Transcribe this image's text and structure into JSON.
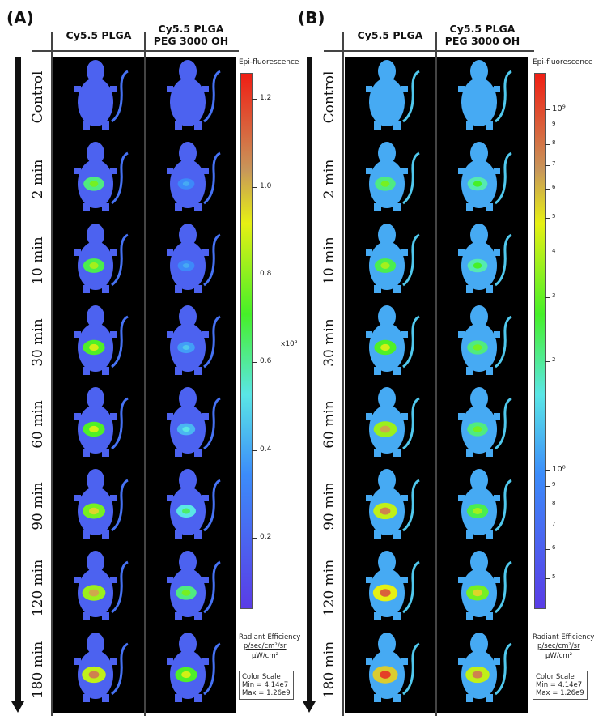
{
  "panels": [
    {
      "label": "(A)",
      "columns": [
        "Cy5.5 PLGA",
        "Cy5.5 PLGA\nPEG 3000 OH"
      ],
      "colorbar": {
        "title": "Epi-fluorescence",
        "scale": "linear",
        "multiplier": "x10⁹",
        "ticks": [
          "1.2",
          "1.0",
          "0.8",
          "0.6",
          "0.4",
          "0.2"
        ],
        "unit_title": "Radiant Efficiency",
        "unit_num": "p/sec/cm²/sr",
        "unit_den": "µW/cm²",
        "scale_box": [
          "Color Scale",
          "Min = 4.14e7",
          "Max = 1.26e9"
        ]
      },
      "signal_levels": [
        [
          0.05,
          0.05
        ],
        [
          0.6,
          0.3
        ],
        [
          0.65,
          0.3
        ],
        [
          0.7,
          0.35
        ],
        [
          0.7,
          0.4
        ],
        [
          0.75,
          0.5
        ],
        [
          0.8,
          0.6
        ],
        [
          0.85,
          0.7
        ]
      ]
    },
    {
      "label": "(B)",
      "columns": [
        "Cy5.5 PLGA",
        "Cy5.5 PLGA\nPEG 3000 OH"
      ],
      "colorbar": {
        "title": "Epi-fluorescence",
        "scale": "log",
        "ticks": [
          "10⁹",
          "9",
          "8",
          "7",
          "6",
          "5",
          "4",
          "3",
          "2",
          "10⁸",
          "9",
          "8",
          "7",
          "6",
          "5"
        ],
        "unit_title": "Radiant Efficiency",
        "unit_num": "p/sec/cm²/sr",
        "unit_den": "µW/cm²",
        "scale_box": [
          "Color Scale",
          "Min = 4.14e7",
          "Max = 1.26e9"
        ]
      },
      "signal_levels": [
        [
          0.1,
          0.1
        ],
        [
          0.6,
          0.55
        ],
        [
          0.65,
          0.55
        ],
        [
          0.7,
          0.6
        ],
        [
          0.8,
          0.6
        ],
        [
          0.85,
          0.65
        ],
        [
          0.9,
          0.75
        ],
        [
          0.95,
          0.85
        ]
      ]
    }
  ],
  "time_points": [
    "Control",
    "2 min",
    "10 min",
    "30 min",
    "60 min",
    "90 min",
    "120 min",
    "180 min"
  ]
}
